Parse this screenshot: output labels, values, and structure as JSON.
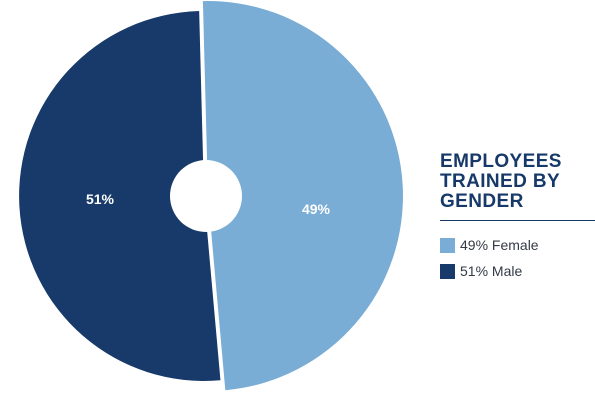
{
  "chart_data": {
    "type": "pie",
    "title": "EMPLOYEES TRAINED BY GENDER",
    "slices": [
      {
        "name": "Female",
        "value": 49,
        "label": "49%",
        "legend_label": "49% Female",
        "color": "#7aadd5"
      },
      {
        "name": "Male",
        "value": 51,
        "label": "51%",
        "legend_label": "51% Male",
        "color": "#173a6b"
      }
    ],
    "donut_hole": true,
    "exploded_slice": "Female",
    "legend_position": "right"
  },
  "colors": {
    "female": "#7aadd5",
    "male": "#173a6b",
    "title": "#17396a",
    "background": "#ffffff"
  }
}
